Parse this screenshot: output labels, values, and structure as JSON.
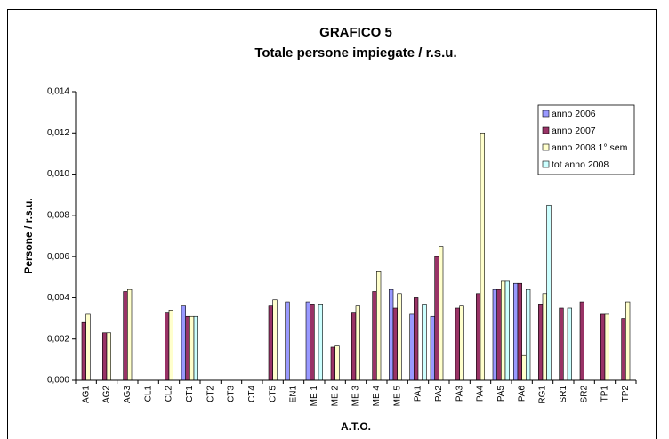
{
  "chart_data": {
    "type": "bar",
    "title": "GRAFICO 5",
    "subtitle": "Totale persone impiegate / r.s.u.",
    "x_label": "A.T.O.",
    "y_label": "Persone / r.s.u.",
    "categories": [
      "AG1",
      "AG2",
      "AG3",
      "CL1",
      "CL2",
      "CT1",
      "CT2",
      "CT3",
      "CT4",
      "CT5",
      "EN1",
      "ME 1",
      "ME 2",
      "ME 3",
      "ME 4",
      "ME 5",
      "PA1",
      "PA2",
      "PA3",
      "PA4",
      "PA5",
      "PA6",
      "RG1",
      "SR1",
      "SR2",
      "TP1",
      "TP2"
    ],
    "series": [
      {
        "name": "anno 2006",
        "color": "#9999ff",
        "values": [
          null,
          null,
          null,
          null,
          null,
          0.0036,
          null,
          null,
          null,
          null,
          0.0038,
          0.0038,
          null,
          null,
          null,
          0.0044,
          0.0032,
          0.0031,
          null,
          null,
          0.0044,
          0.0047,
          null,
          null,
          null,
          null,
          null
        ]
      },
      {
        "name": "anno 2007",
        "color": "#993366",
        "values": [
          0.0028,
          0.0023,
          0.0043,
          null,
          0.0033,
          0.0031,
          null,
          null,
          null,
          0.0036,
          null,
          0.0037,
          0.0016,
          0.0033,
          0.0043,
          0.0035,
          0.004,
          0.006,
          0.0035,
          0.0042,
          0.0044,
          0.0047,
          0.0037,
          0.0035,
          0.0038,
          0.0032,
          0.003
        ]
      },
      {
        "name": "anno 2008 1° sem",
        "color": "#ffffcc",
        "values": [
          0.0032,
          0.0023,
          0.0044,
          null,
          0.0034,
          0.0031,
          null,
          null,
          null,
          0.0039,
          null,
          null,
          0.0017,
          0.0036,
          0.0053,
          0.0042,
          null,
          0.0065,
          0.0036,
          0.012,
          0.0048,
          0.0012,
          0.0042,
          null,
          null,
          0.0032,
          0.0038
        ]
      },
      {
        "name": "tot anno 2008",
        "color": "#ccffff",
        "values": [
          null,
          null,
          null,
          null,
          null,
          0.0031,
          null,
          null,
          null,
          null,
          null,
          0.0037,
          null,
          null,
          null,
          null,
          0.0037,
          null,
          null,
          null,
          0.0048,
          0.0044,
          0.0085,
          0.0035,
          null,
          null,
          null
        ]
      }
    ],
    "ylim": [
      0,
      0.014
    ],
    "yticks": [
      {
        "value": 0,
        "label": "0,000"
      },
      {
        "value": 0.002,
        "label": "0,002"
      },
      {
        "value": 0.004,
        "label": "0,004"
      },
      {
        "value": 0.006,
        "label": "0,006"
      },
      {
        "value": 0.008,
        "label": "0,008"
      },
      {
        "value": 0.01,
        "label": "0,010"
      },
      {
        "value": 0.012,
        "label": "0,012"
      },
      {
        "value": 0.014,
        "label": "0,014"
      }
    ],
    "legend": "upper right",
    "grid": false
  }
}
